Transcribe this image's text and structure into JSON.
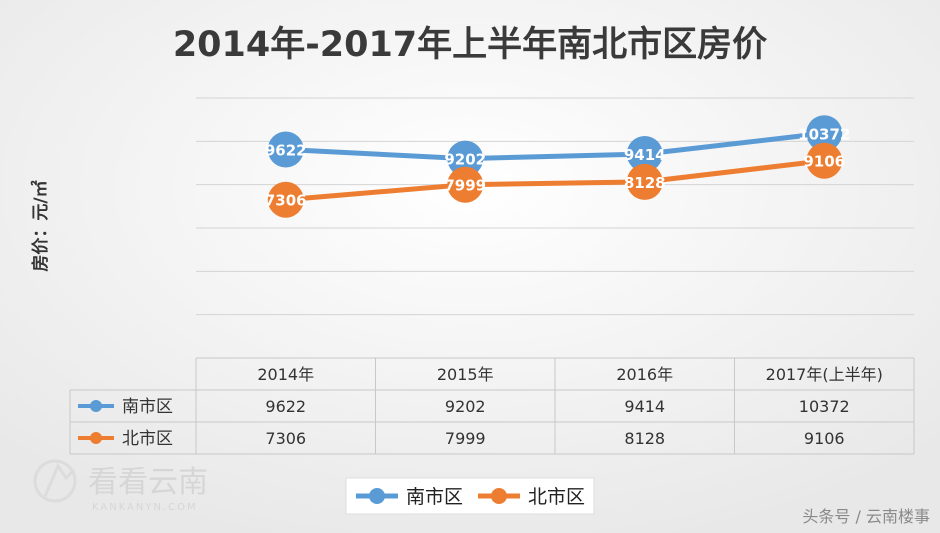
{
  "colors": {
    "south": "#5b9bd5",
    "north": "#ed7d31",
    "grid": "#d4d4d4",
    "table_border": "#c8c8c8"
  },
  "chart_data": {
    "type": "line",
    "title": "2014年-2017年上半年南北市区房价",
    "ylabel": "房价：元/㎡",
    "categories": [
      "2014年",
      "2015年",
      "2016年",
      "2017年(上半年)"
    ],
    "ylim": [
      0,
      12000
    ],
    "grid": true,
    "legend_position": "bottom",
    "data_table": true,
    "series": [
      {
        "name": "南市区",
        "values": [
          9622,
          9202,
          9414,
          10372
        ]
      },
      {
        "name": "北市区",
        "values": [
          7306,
          7999,
          8128,
          9106
        ]
      }
    ]
  },
  "watermark": {
    "brand": "看看云南",
    "url": "KANKANYN.COM"
  },
  "source_caption": "头条号 / 云南楼事"
}
